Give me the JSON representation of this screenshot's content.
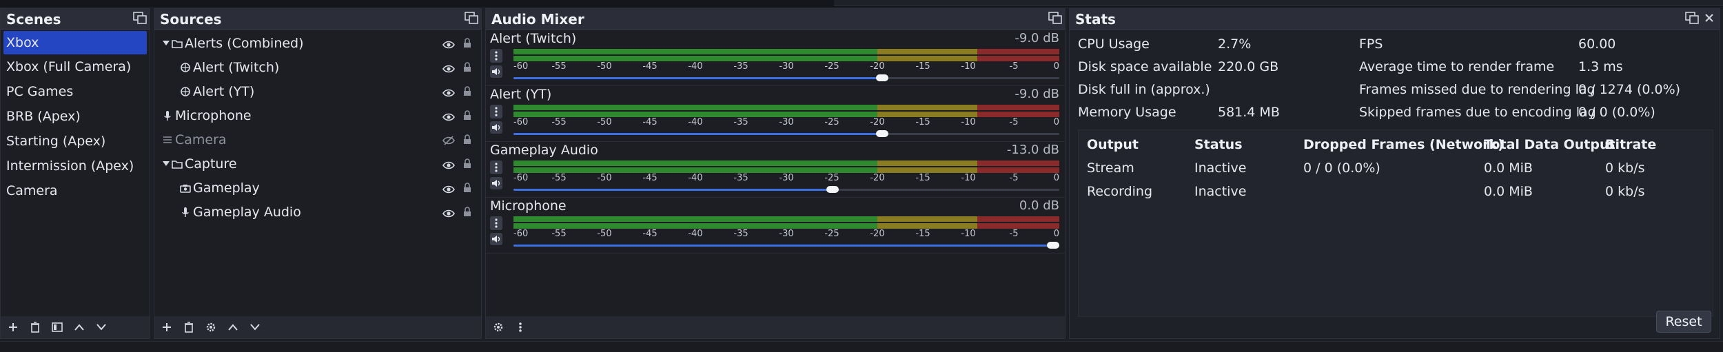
{
  "scenes": {
    "title": "Scenes",
    "items": [
      "Xbox",
      "Xbox (Full Camera)",
      "PC Games",
      "BRB (Apex)",
      "Starting (Apex)",
      "Intermission (Apex)",
      "Camera"
    ],
    "selected_index": 0
  },
  "sources": {
    "title": "Sources",
    "items": [
      {
        "label": "Alerts (Combined)",
        "icon": "folder-icon",
        "group": true,
        "indent": 0,
        "visible": true
      },
      {
        "label": "Alert (Twitch)",
        "icon": "browser-icon",
        "group": false,
        "indent": 1,
        "visible": true
      },
      {
        "label": "Alert (YT)",
        "icon": "browser-icon",
        "group": false,
        "indent": 1,
        "visible": true
      },
      {
        "label": "Microphone",
        "icon": "microphone-icon",
        "group": false,
        "indent": 0,
        "visible": true
      },
      {
        "label": "Camera",
        "icon": "list-icon",
        "group": false,
        "indent": 0,
        "visible": false
      },
      {
        "label": "Capture",
        "icon": "folder-icon",
        "group": true,
        "indent": 0,
        "visible": true
      },
      {
        "label": "Gameplay",
        "icon": "camera-icon",
        "group": false,
        "indent": 1,
        "visible": true
      },
      {
        "label": "Gameplay Audio",
        "icon": "microphone-icon",
        "group": false,
        "indent": 1,
        "visible": true
      }
    ]
  },
  "mixer": {
    "title": "Audio Mixer",
    "scale_labels": [
      "-60",
      "-55",
      "-50",
      "-45",
      "-40",
      "-35",
      "-30",
      "-25",
      "-20",
      "-15",
      "-10",
      "-5",
      "0"
    ],
    "channels": [
      {
        "name": "Alert (Twitch)",
        "db": "-9.0 dB",
        "volume_db": -9.0
      },
      {
        "name": "Alert (YT)",
        "db": "-9.0 dB",
        "volume_db": -9.0
      },
      {
        "name": "Gameplay Audio",
        "db": "-13.0 dB",
        "volume_db": -13.0
      },
      {
        "name": "Microphone",
        "db": "0.0 dB",
        "volume_db": 0.0
      }
    ]
  },
  "stats": {
    "title": "Stats",
    "left": [
      {
        "label": "CPU Usage",
        "value": "2.7%"
      },
      {
        "label": "Disk space available",
        "value": "220.0 GB"
      },
      {
        "label": "Disk full in (approx.)",
        "value": ""
      },
      {
        "label": "Memory Usage",
        "value": "581.4 MB"
      }
    ],
    "right": [
      {
        "label": "FPS",
        "value": "60.00"
      },
      {
        "label": "Average time to render frame",
        "value": "1.3 ms"
      },
      {
        "label": "Frames missed due to rendering lag",
        "value": "0 / 1274 (0.0%)"
      },
      {
        "label": "Skipped frames due to encoding lag",
        "value": "0 / 0 (0.0%)"
      }
    ],
    "table": {
      "headers": [
        "Output",
        "Status",
        "Dropped Frames (Network)",
        "Total Data Output",
        "Bitrate"
      ],
      "rows": [
        [
          "Stream",
          "Inactive",
          "0 / 0 (0.0%)",
          "0.0 MiB",
          "0 kb/s"
        ],
        [
          "Recording",
          "Inactive",
          "",
          "0.0 MiB",
          "0 kb/s"
        ]
      ]
    },
    "reset_label": "Reset"
  },
  "colors": {
    "accent": "#2546c2",
    "meter_green": "#2f8a2f",
    "meter_yellow": "#8a7d21",
    "meter_red": "#8a2a2a",
    "slider_blue": "#3c6fe3"
  }
}
